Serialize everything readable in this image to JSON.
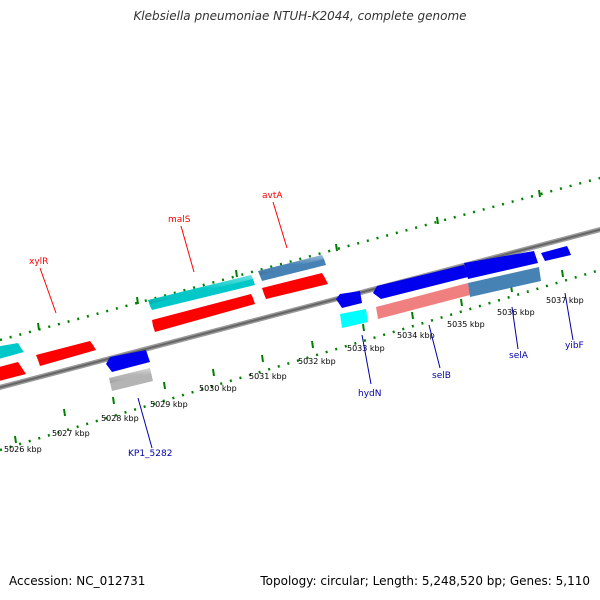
{
  "title": "Klebsiella pneumoniae NTUH-K2044, complete genome",
  "accession": "Accession: NC_012731",
  "summary": "Topology: circular; Length: 5,248,520 bp; Genes: 5,110",
  "ticks": [
    "5026 kbp",
    "5027 kbp",
    "5028 kbp",
    "5029 kbp",
    "5030 kbp",
    "5031 kbp",
    "5032 kbp",
    "5033 kbp",
    "5034 kbp",
    "5035 kbp",
    "5036 kbp",
    "5037 kbp"
  ],
  "forward_genes": [
    {
      "label": "xylR",
      "color": "#ff0000"
    },
    {
      "label": "malS",
      "color": "#00c8c8"
    },
    {
      "label": "avtA",
      "color": "#ff0000"
    }
  ],
  "reverse_genes": [
    {
      "label": "KP1_5282",
      "color": "#b4b4b4"
    },
    {
      "label": "hydN",
      "color": "#00ffff"
    },
    {
      "label": "selB",
      "color": "#f08080"
    },
    {
      "label": "selA",
      "color": "#4682b4"
    },
    {
      "label": "yibF",
      "color": "#0000ff"
    }
  ],
  "colors": {
    "forward_label": "#ff0000",
    "reverse_label": "#0000aa",
    "backbone": "#777777",
    "tick_dots": "#008000"
  }
}
